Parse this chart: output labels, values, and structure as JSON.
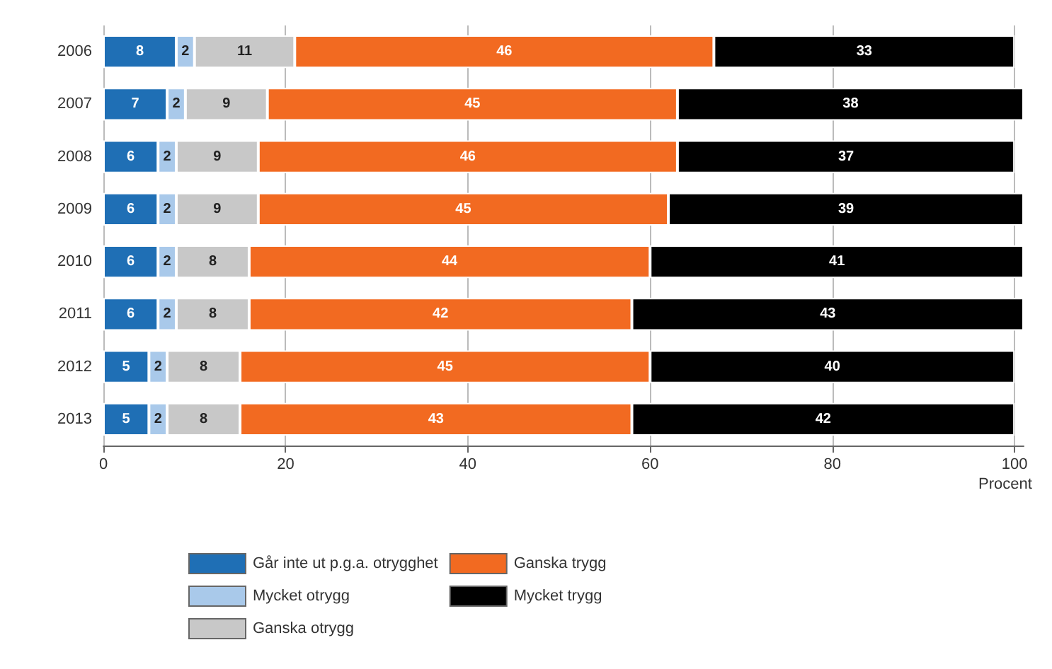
{
  "chart_data": {
    "type": "bar",
    "orientation": "horizontal",
    "stacked": true,
    "data_labels": true,
    "xlabel": "Procent",
    "categories": [
      "2006",
      "2007",
      "2008",
      "2009",
      "2010",
      "2011",
      "2012",
      "2013"
    ],
    "series": [
      {
        "name": "Går inte ut p.g.a. otrygghet",
        "color": "#1f6fb5",
        "values": [
          8,
          7,
          6,
          6,
          6,
          6,
          5,
          5
        ]
      },
      {
        "name": "Mycket otrygg",
        "color": "#a9c9ea",
        "values": [
          2,
          2,
          2,
          2,
          2,
          2,
          2,
          2
        ]
      },
      {
        "name": "Ganska otrygg",
        "color": "#c8c8c8",
        "values": [
          11,
          9,
          9,
          9,
          8,
          8,
          8,
          8
        ]
      },
      {
        "name": "Ganska trygg",
        "color": "#f26a21",
        "values": [
          46,
          45,
          46,
          45,
          44,
          42,
          45,
          43
        ]
      },
      {
        "name": "Mycket trygg",
        "color": "#000000",
        "values": [
          33,
          38,
          37,
          39,
          41,
          43,
          40,
          42
        ]
      }
    ],
    "xlim": [
      0,
      101
    ],
    "xticks": [
      0,
      20,
      40,
      60,
      80,
      100
    ],
    "grid": "x",
    "legend": "bottom"
  }
}
